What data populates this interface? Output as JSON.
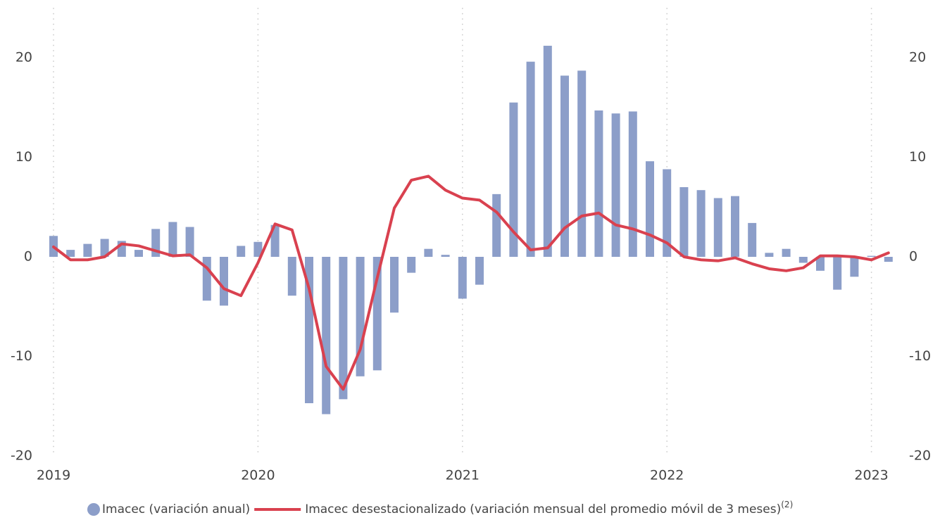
{
  "chart_data": {
    "type": "bar-line",
    "categories": [
      "2019",
      null,
      null,
      null,
      null,
      null,
      null,
      null,
      null,
      null,
      null,
      null,
      "2020",
      null,
      null,
      null,
      null,
      null,
      null,
      null,
      null,
      null,
      null,
      null,
      "2021",
      null,
      null,
      null,
      null,
      null,
      null,
      null,
      null,
      null,
      null,
      null,
      "2022",
      null,
      null,
      null,
      null,
      null,
      null,
      null,
      null,
      null,
      null,
      null,
      "2023",
      null
    ],
    "series": [
      {
        "name": "Imacec (variación anual)",
        "type": "bar",
        "color": "#8c9ec9",
        "values": [
          2.1,
          0.7,
          1.3,
          1.8,
          1.6,
          0.7,
          2.8,
          3.5,
          3.0,
          -4.4,
          -4.9,
          1.1,
          1.5,
          3.2,
          -3.9,
          -14.7,
          -15.8,
          -14.3,
          -12.0,
          -11.4,
          -5.6,
          -1.6,
          0.8,
          0.2,
          -4.2,
          -2.8,
          6.3,
          15.5,
          19.6,
          21.2,
          18.2,
          18.7,
          14.7,
          14.4,
          14.6,
          9.6,
          8.8,
          7.0,
          6.7,
          5.9,
          6.1,
          3.4,
          0.4,
          0.8,
          -0.6,
          -1.4,
          -3.3,
          -2.0,
          0.1,
          -0.5
        ]
      },
      {
        "name": "Imacec desestacionalizado (variación mensual del promedio móvil de 3 meses)",
        "note": "(2)",
        "type": "line",
        "axis": "y2",
        "color": "#d9414f",
        "values": [
          1.0,
          -0.3,
          -0.3,
          0.0,
          1.3,
          1.1,
          0.6,
          0.1,
          0.2,
          -1.1,
          -3.2,
          -3.9,
          -0.6,
          3.3,
          2.7,
          -3.2,
          -11.0,
          -13.3,
          -9.3,
          -2.1,
          4.9,
          7.7,
          8.1,
          6.7,
          5.9,
          5.7,
          4.5,
          2.5,
          0.7,
          0.9,
          2.9,
          4.1,
          4.4,
          3.2,
          2.8,
          2.2,
          1.4,
          0.0,
          -0.3,
          -0.4,
          -0.1,
          -0.7,
          -1.2,
          -1.4,
          -1.1,
          0.1,
          0.1,
          0.0,
          -0.3,
          0.4
        ]
      }
    ],
    "ylim": [
      -20,
      25
    ],
    "yticks": [
      -20,
      -10,
      0,
      10,
      20
    ],
    "y2lim": [
      -20,
      25
    ],
    "y2ticks": [
      -20,
      -10,
      0,
      10,
      20
    ],
    "xgrid": true,
    "legend": "bottom"
  }
}
